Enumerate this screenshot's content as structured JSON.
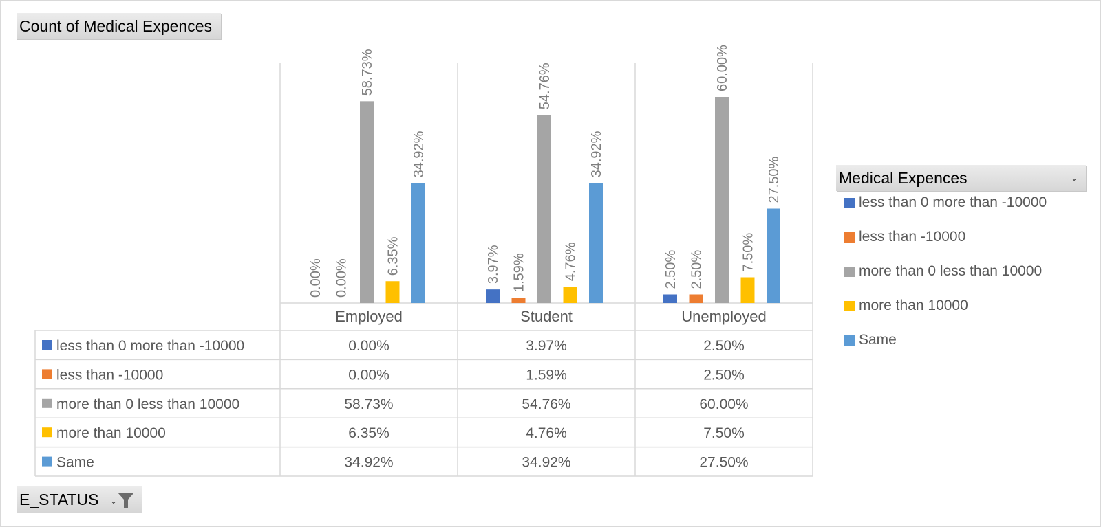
{
  "value_field": "Count of Medical Expences",
  "filter_field": "E_STATUS",
  "legend_field": "Medical Expences",
  "chart_data": {
    "type": "bar",
    "categories": [
      "Employed",
      "Student",
      "Unemployed"
    ],
    "series": [
      {
        "name": "less than 0 more than -10000",
        "color": "#4472C4",
        "values": [
          0.0,
          3.97,
          2.5
        ],
        "labels": [
          "0.00%",
          "3.97%",
          "2.50%"
        ]
      },
      {
        "name": "less than -10000",
        "color": "#ED7D31",
        "values": [
          0.0,
          1.59,
          2.5
        ],
        "labels": [
          "0.00%",
          "1.59%",
          "2.50%"
        ]
      },
      {
        "name": "more than 0 less than 10000",
        "color": "#A5A5A5",
        "values": [
          58.73,
          54.76,
          60.0
        ],
        "labels": [
          "58.73%",
          "54.76%",
          "60.00%"
        ]
      },
      {
        "name": "more than 10000",
        "color": "#FFC000",
        "values": [
          6.35,
          4.76,
          7.5
        ],
        "labels": [
          "6.35%",
          "4.76%",
          "7.50%"
        ]
      },
      {
        "name": "Same",
        "color": "#5B9BD5",
        "values": [
          34.92,
          34.92,
          27.5
        ],
        "labels": [
          "34.92%",
          "34.92%",
          "27.50%"
        ]
      }
    ],
    "ylim": [
      0,
      100
    ],
    "grid": false,
    "legend_position": "right",
    "data_table": true
  }
}
